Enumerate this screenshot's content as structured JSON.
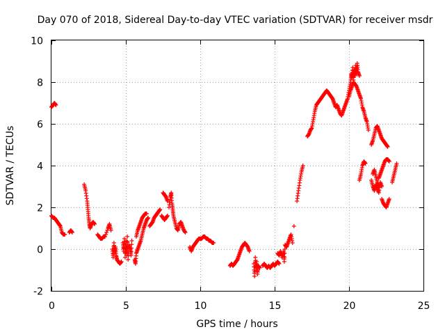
{
  "chart_data": {
    "type": "scatter",
    "title": "Day 070 of 2018, Sidereal Day-to-day VTEC variation (SDTVAR) for receiver msdr",
    "xlabel": "GPS time / hours",
    "ylabel": "SDTVAR / TECUs",
    "xlim": [
      0,
      25
    ],
    "ylim": [
      -2,
      10
    ],
    "xticks": [
      0,
      5,
      10,
      15,
      20,
      25
    ],
    "yticks": [
      -2,
      0,
      2,
      4,
      6,
      8,
      10
    ],
    "xtick_labels": [
      "0",
      "5",
      "10",
      "15",
      "20",
      "25"
    ],
    "ytick_labels": [
      "-2",
      "0",
      "2",
      "4",
      "6",
      "8",
      "10"
    ],
    "grid": true,
    "marker": "plus",
    "color": "#ff0000",
    "segments": [
      [
        [
          0.0,
          6.8
        ],
        [
          0.1,
          6.9
        ],
        [
          0.2,
          7.0
        ],
        [
          0.3,
          6.9
        ]
      ],
      [
        [
          0.0,
          1.6
        ],
        [
          0.1,
          1.5
        ],
        [
          0.2,
          1.5
        ],
        [
          0.3,
          1.4
        ],
        [
          0.4,
          1.3
        ],
        [
          0.5,
          1.2
        ],
        [
          0.6,
          1.1
        ],
        [
          0.7,
          0.8
        ],
        [
          0.8,
          0.7
        ],
        [
          0.9,
          0.7
        ]
      ],
      [
        [
          1.2,
          0.8
        ],
        [
          1.3,
          0.9
        ],
        [
          1.4,
          0.8
        ]
      ],
      [
        [
          2.2,
          3.1
        ],
        [
          2.3,
          2.8
        ],
        [
          2.4,
          2.3
        ],
        [
          2.45,
          1.9
        ],
        [
          2.5,
          1.5
        ],
        [
          2.55,
          1.2
        ],
        [
          2.6,
          1.0
        ],
        [
          2.7,
          1.2
        ],
        [
          2.8,
          1.3
        ],
        [
          2.9,
          1.2
        ]
      ],
      [
        [
          3.1,
          0.7
        ],
        [
          3.2,
          0.6
        ],
        [
          3.3,
          0.5
        ],
        [
          3.4,
          0.5
        ],
        [
          3.5,
          0.6
        ],
        [
          3.6,
          0.6
        ],
        [
          3.8,
          1.0
        ],
        [
          3.9,
          1.2
        ],
        [
          4.0,
          0.9
        ]
      ],
      [
        [
          4.1,
          0.0
        ],
        [
          4.15,
          -0.4
        ],
        [
          4.2,
          0.3
        ],
        [
          4.25,
          -0.2
        ],
        [
          4.3,
          0.1
        ],
        [
          4.35,
          -0.3
        ],
        [
          4.4,
          -0.5
        ],
        [
          4.5,
          -0.6
        ],
        [
          4.6,
          -0.7
        ],
        [
          4.7,
          -0.6
        ]
      ],
      [
        [
          4.8,
          0.3
        ],
        [
          4.85,
          -0.1
        ],
        [
          4.9,
          0.5
        ],
        [
          4.95,
          -0.4
        ],
        [
          5.0,
          0.4
        ],
        [
          5.05,
          -0.3
        ],
        [
          5.1,
          0.6
        ],
        [
          5.15,
          -0.5
        ],
        [
          5.2,
          0.2
        ],
        [
          5.3,
          0.0
        ],
        [
          5.35,
          -0.3
        ],
        [
          5.4,
          0.4
        ]
      ],
      [
        [
          5.6,
          -0.5
        ],
        [
          5.65,
          -0.7
        ],
        [
          5.7,
          -0.2
        ],
        [
          5.8,
          0.0
        ],
        [
          5.9,
          0.2
        ],
        [
          6.0,
          0.4
        ],
        [
          6.1,
          0.7
        ],
        [
          6.2,
          1.0
        ],
        [
          6.3,
          1.2
        ],
        [
          6.4,
          1.4
        ],
        [
          6.5,
          1.5
        ]
      ],
      [
        [
          5.7,
          0.6
        ],
        [
          5.8,
          0.9
        ],
        [
          5.9,
          1.1
        ],
        [
          6.0,
          1.3
        ],
        [
          6.1,
          1.5
        ],
        [
          6.2,
          1.6
        ],
        [
          6.3,
          1.7
        ],
        [
          6.4,
          1.7
        ]
      ],
      [
        [
          6.6,
          1.1
        ],
        [
          6.7,
          1.2
        ],
        [
          6.8,
          1.3
        ],
        [
          6.9,
          1.5
        ],
        [
          7.0,
          1.6
        ],
        [
          7.1,
          1.7
        ],
        [
          7.2,
          1.8
        ],
        [
          7.3,
          1.9
        ]
      ],
      [
        [
          7.5,
          2.7
        ],
        [
          7.6,
          2.6
        ],
        [
          7.7,
          2.5
        ],
        [
          7.8,
          2.3
        ]
      ],
      [
        [
          7.4,
          1.6
        ],
        [
          7.5,
          1.5
        ],
        [
          7.6,
          1.4
        ],
        [
          7.7,
          1.5
        ],
        [
          7.8,
          1.6
        ]
      ],
      [
        [
          7.9,
          2.0
        ],
        [
          8.0,
          2.5
        ],
        [
          8.05,
          2.7
        ],
        [
          8.1,
          2.2
        ],
        [
          8.15,
          1.9
        ],
        [
          8.2,
          1.6
        ],
        [
          8.3,
          1.3
        ],
        [
          8.4,
          1.0
        ],
        [
          8.5,
          0.9
        ],
        [
          8.6,
          1.2
        ],
        [
          8.7,
          1.3
        ],
        [
          8.8,
          1.1
        ],
        [
          8.9,
          0.9
        ],
        [
          9.0,
          0.8
        ]
      ],
      [
        [
          9.3,
          0.1
        ],
        [
          9.4,
          -0.1
        ],
        [
          9.5,
          0.1
        ],
        [
          9.6,
          0.2
        ],
        [
          9.7,
          0.3
        ],
        [
          9.8,
          0.4
        ],
        [
          9.9,
          0.5
        ],
        [
          10.0,
          0.5
        ],
        [
          10.1,
          0.5
        ],
        [
          10.2,
          0.6
        ],
        [
          10.3,
          0.6
        ],
        [
          10.4,
          0.5
        ],
        [
          10.5,
          0.5
        ],
        [
          10.6,
          0.4
        ],
        [
          10.7,
          0.4
        ],
        [
          10.8,
          0.3
        ],
        [
          10.9,
          0.3
        ]
      ],
      [
        [
          12.0,
          -0.8
        ],
        [
          12.1,
          -0.7
        ],
        [
          12.2,
          -0.8
        ],
        [
          12.3,
          -0.7
        ],
        [
          12.4,
          -0.6
        ],
        [
          12.5,
          -0.5
        ],
        [
          12.6,
          -0.3
        ],
        [
          12.7,
          -0.1
        ],
        [
          12.8,
          0.1
        ],
        [
          12.9,
          0.2
        ],
        [
          13.0,
          0.3
        ],
        [
          13.1,
          0.2
        ],
        [
          13.2,
          0.1
        ],
        [
          13.3,
          -0.1
        ]
      ],
      [
        [
          13.6,
          -0.7
        ],
        [
          13.65,
          -1.3
        ],
        [
          13.7,
          -0.4
        ],
        [
          13.75,
          -1.0
        ],
        [
          13.8,
          -0.6
        ],
        [
          13.85,
          -1.2
        ],
        [
          13.9,
          -0.8
        ],
        [
          14.0,
          -0.9
        ]
      ],
      [
        [
          14.2,
          -0.8
        ],
        [
          14.3,
          -0.7
        ],
        [
          14.4,
          -0.8
        ],
        [
          14.5,
          -0.9
        ],
        [
          14.6,
          -0.8
        ],
        [
          14.7,
          -0.9
        ],
        [
          14.8,
          -0.8
        ],
        [
          14.9,
          -0.7
        ],
        [
          15.0,
          -0.8
        ],
        [
          15.1,
          -0.7
        ],
        [
          15.2,
          -0.6
        ],
        [
          15.3,
          -0.7
        ]
      ],
      [
        [
          15.2,
          -0.2
        ],
        [
          15.3,
          -0.3
        ],
        [
          15.4,
          -0.1
        ],
        [
          15.5,
          -0.4
        ],
        [
          15.6,
          -0.1
        ],
        [
          15.65,
          -0.6
        ],
        [
          15.7,
          0.2
        ],
        [
          15.8,
          0.1
        ],
        [
          15.9,
          0.3
        ],
        [
          16.0,
          0.5
        ],
        [
          16.1,
          0.7
        ],
        [
          16.2,
          0.3
        ]
      ],
      [
        [
          16.3,
          1.1
        ]
      ],
      [
        [
          16.5,
          2.3
        ],
        [
          16.6,
          2.8
        ],
        [
          16.7,
          3.3
        ],
        [
          16.8,
          3.7
        ],
        [
          16.9,
          4.0
        ]
      ],
      [
        [
          17.2,
          5.4
        ],
        [
          17.3,
          5.5
        ],
        [
          17.4,
          5.7
        ],
        [
          17.5,
          5.8
        ],
        [
          17.6,
          6.2
        ],
        [
          17.7,
          6.6
        ],
        [
          17.8,
          6.9
        ],
        [
          17.9,
          7.0
        ],
        [
          18.0,
          7.1
        ],
        [
          18.1,
          7.2
        ],
        [
          18.2,
          7.3
        ],
        [
          18.3,
          7.4
        ],
        [
          18.4,
          7.5
        ],
        [
          18.5,
          7.6
        ],
        [
          18.6,
          7.5
        ],
        [
          18.7,
          7.4
        ],
        [
          18.8,
          7.3
        ],
        [
          18.9,
          7.2
        ],
        [
          19.0,
          7.0
        ],
        [
          19.1,
          6.8
        ],
        [
          19.2,
          6.9
        ],
        [
          19.3,
          6.7
        ],
        [
          19.4,
          6.5
        ],
        [
          19.5,
          6.4
        ],
        [
          19.6,
          6.6
        ],
        [
          19.7,
          6.8
        ],
        [
          19.8,
          7.0
        ],
        [
          19.9,
          7.2
        ],
        [
          20.0,
          7.6
        ],
        [
          20.1,
          8.0
        ],
        [
          20.15,
          8.4
        ],
        [
          20.2,
          8.2
        ],
        [
          20.25,
          8.7
        ],
        [
          20.3,
          8.1
        ],
        [
          20.35,
          8.6
        ],
        [
          20.4,
          8.3
        ],
        [
          20.45,
          8.8
        ],
        [
          20.5,
          8.4
        ],
        [
          20.55,
          8.9
        ],
        [
          20.6,
          8.5
        ],
        [
          20.7,
          8.3
        ]
      ],
      [
        [
          20.0,
          7.3
        ],
        [
          20.1,
          7.6
        ],
        [
          20.2,
          7.8
        ],
        [
          20.3,
          8.0
        ],
        [
          20.4,
          7.9
        ],
        [
          20.5,
          7.8
        ],
        [
          20.6,
          7.6
        ],
        [
          20.7,
          7.4
        ],
        [
          20.8,
          7.2
        ],
        [
          20.9,
          6.8
        ],
        [
          21.0,
          6.6
        ],
        [
          21.1,
          6.3
        ],
        [
          21.2,
          6.1
        ],
        [
          21.3,
          5.7
        ]
      ],
      [
        [
          21.5,
          5.0
        ],
        [
          21.6,
          5.2
        ],
        [
          21.7,
          5.5
        ],
        [
          21.8,
          5.8
        ],
        [
          21.9,
          5.9
        ],
        [
          22.0,
          5.7
        ],
        [
          22.1,
          5.5
        ],
        [
          22.2,
          5.3
        ],
        [
          22.3,
          5.2
        ],
        [
          22.4,
          5.1
        ],
        [
          22.5,
          5.0
        ],
        [
          22.6,
          4.9
        ]
      ],
      [
        [
          20.7,
          3.3
        ],
        [
          20.8,
          3.6
        ],
        [
          20.9,
          4.0
        ],
        [
          21.0,
          4.2
        ],
        [
          21.1,
          4.1
        ]
      ],
      [
        [
          21.5,
          3.3
        ],
        [
          21.6,
          3.0
        ],
        [
          21.7,
          2.8
        ],
        [
          21.8,
          3.1
        ],
        [
          21.9,
          2.9
        ],
        [
          22.0,
          2.7
        ],
        [
          22.1,
          3.2
        ],
        [
          22.2,
          3.0
        ]
      ],
      [
        [
          21.6,
          3.6
        ],
        [
          21.7,
          3.8
        ],
        [
          21.8,
          3.5
        ],
        [
          21.9,
          3.2
        ],
        [
          22.0,
          3.0
        ]
      ],
      [
        [
          22.0,
          3.4
        ],
        [
          22.1,
          3.6
        ],
        [
          22.2,
          3.8
        ],
        [
          22.3,
          4.0
        ],
        [
          22.4,
          4.2
        ],
        [
          22.5,
          4.3
        ],
        [
          22.6,
          4.3
        ],
        [
          22.7,
          4.2
        ]
      ],
      [
        [
          22.2,
          2.4
        ],
        [
          22.3,
          2.2
        ],
        [
          22.4,
          2.1
        ],
        [
          22.5,
          2.0
        ],
        [
          22.6,
          2.2
        ],
        [
          22.7,
          2.4
        ]
      ],
      [
        [
          22.9,
          3.2
        ],
        [
          23.0,
          3.5
        ],
        [
          23.1,
          3.8
        ],
        [
          23.2,
          4.1
        ]
      ]
    ]
  }
}
